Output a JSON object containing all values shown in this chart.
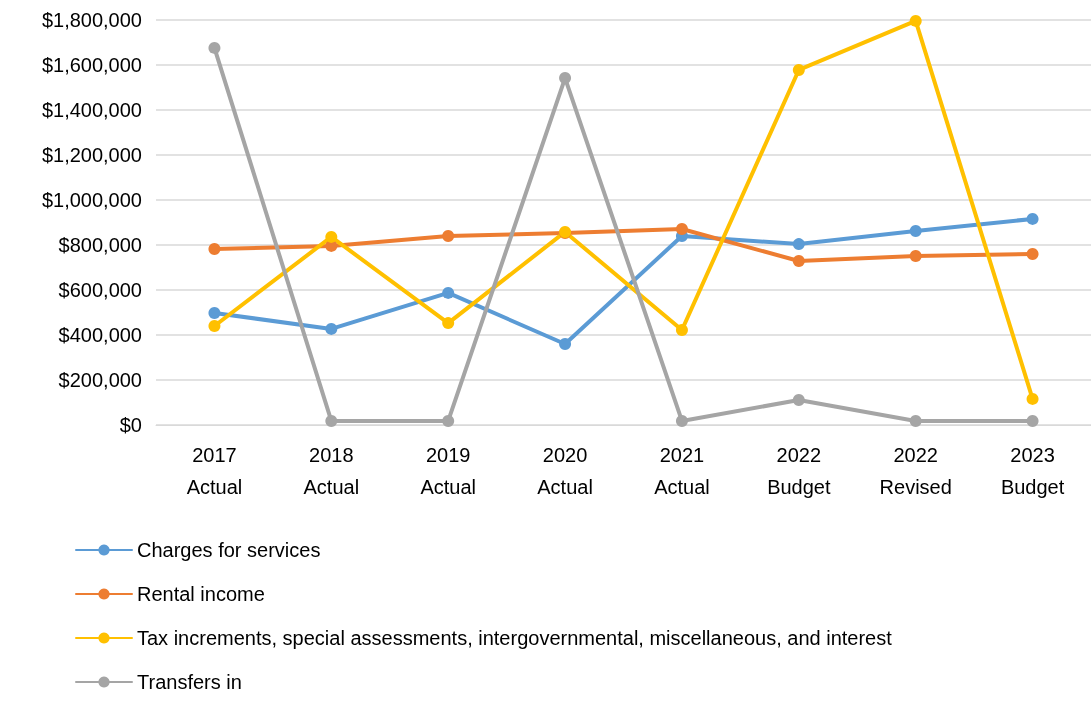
{
  "chart_data": {
    "type": "line",
    "categories": [
      "2017\nActual",
      "2018\nActual",
      "2019\nActual",
      "2020\nActual",
      "2021\nActual",
      "2022\nBudget",
      "2022\nRevised",
      "2023\nBudget"
    ],
    "series": [
      {
        "name": "Charges for services",
        "color": "#5b9bd5",
        "values": [
          498000,
          427000,
          587000,
          360000,
          840000,
          804000,
          862000,
          916000
        ]
      },
      {
        "name": "Rental income",
        "color": "#ed7d31",
        "values": [
          782000,
          796000,
          840000,
          853000,
          871000,
          729000,
          751000,
          760000
        ]
      },
      {
        "name": "Tax increments, special assessments, intergovernmental, miscellaneous, and interest",
        "color": "#ffc000",
        "values": [
          440000,
          836000,
          453000,
          858000,
          422000,
          1578000,
          1796000,
          116000
        ]
      },
      {
        "name": "Transfers in",
        "color": "#a5a5a5",
        "values": [
          1676000,
          18000,
          18000,
          1542000,
          18000,
          111000,
          18000,
          18000
        ]
      }
    ],
    "ylim": [
      0,
      1800000
    ],
    "yticks": [
      {
        "value": 0,
        "label": "$0"
      },
      {
        "value": 200000,
        "label": "$200,000"
      },
      {
        "value": 400000,
        "label": "$400,000"
      },
      {
        "value": 600000,
        "label": "$600,000"
      },
      {
        "value": 800000,
        "label": "$800,000"
      },
      {
        "value": 1000000,
        "label": "$1,000,000"
      },
      {
        "value": 1200000,
        "label": "$1,200,000"
      },
      {
        "value": 1400000,
        "label": "$1,400,000"
      },
      {
        "value": 1600000,
        "label": "$1,600,000"
      },
      {
        "value": 1800000,
        "label": "$1,800,000"
      }
    ],
    "grid": "y",
    "legend": "bottom",
    "marker": "circle",
    "line_style": "solid"
  }
}
